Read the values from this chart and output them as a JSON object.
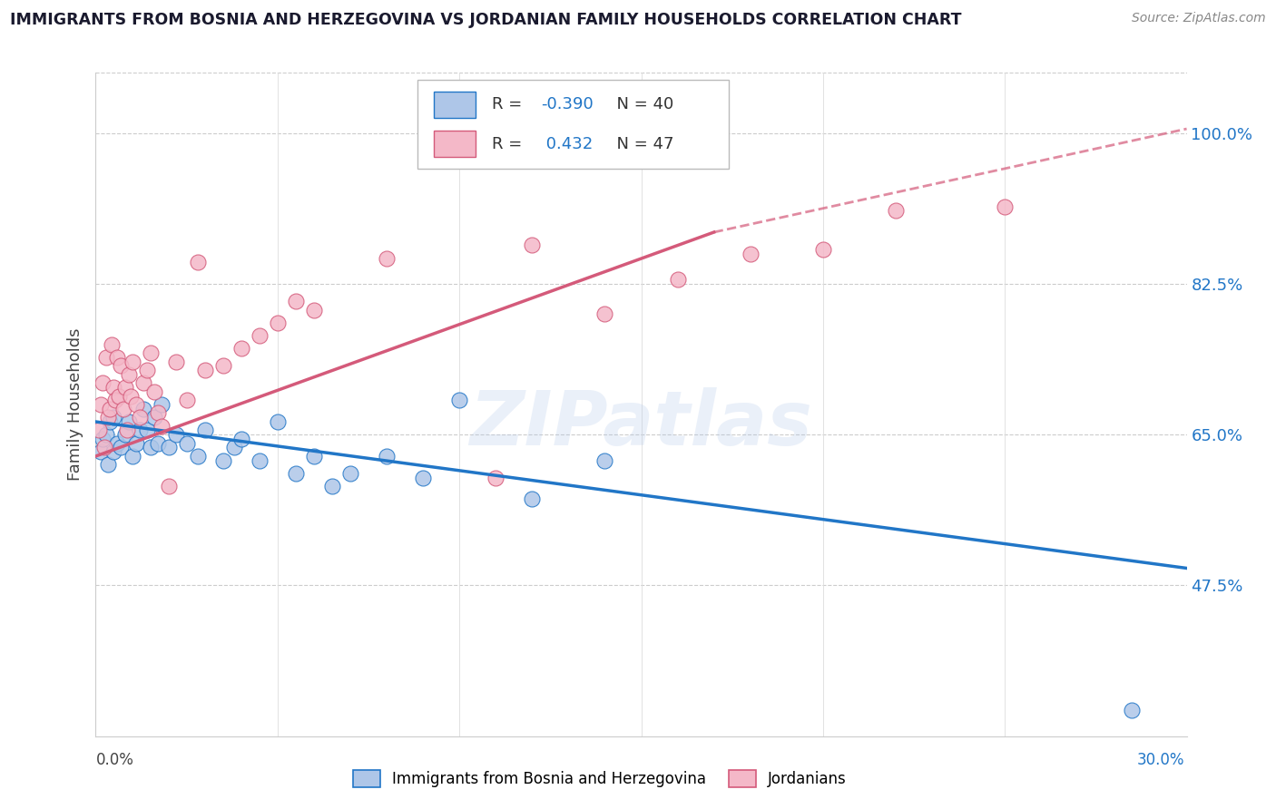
{
  "title": "IMMIGRANTS FROM BOSNIA AND HERZEGOVINA VS JORDANIAN FAMILY HOUSEHOLDS CORRELATION CHART",
  "source": "Source: ZipAtlas.com",
  "ylabel": "Family Households",
  "yticks_vals": [
    47.5,
    65.0,
    82.5,
    100.0
  ],
  "yticks_labels": [
    "47.5%",
    "65.0%",
    "82.5%",
    "100.0%"
  ],
  "xlim": [
    0.0,
    30.0
  ],
  "ylim": [
    30.0,
    107.0
  ],
  "blue_color": "#aec6e8",
  "blue_line_color": "#2176c7",
  "pink_color": "#f4b8c8",
  "pink_line_color": "#d45a7a",
  "R_blue": -0.39,
  "N_blue": 40,
  "R_pink": 0.432,
  "N_pink": 47,
  "watermark": "ZIPatlas",
  "blue_scatter": [
    [
      0.15,
      63.0
    ],
    [
      0.2,
      64.5
    ],
    [
      0.3,
      65.0
    ],
    [
      0.35,
      61.5
    ],
    [
      0.4,
      66.5
    ],
    [
      0.5,
      63.0
    ],
    [
      0.5,
      67.0
    ],
    [
      0.6,
      64.0
    ],
    [
      0.7,
      63.5
    ],
    [
      0.8,
      65.0
    ],
    [
      0.9,
      66.5
    ],
    [
      1.0,
      62.5
    ],
    [
      1.1,
      64.0
    ],
    [
      1.2,
      65.5
    ],
    [
      1.3,
      68.0
    ],
    [
      1.4,
      65.5
    ],
    [
      1.5,
      63.5
    ],
    [
      1.6,
      67.0
    ],
    [
      1.7,
      64.0
    ],
    [
      1.8,
      68.5
    ],
    [
      2.0,
      63.5
    ],
    [
      2.2,
      65.0
    ],
    [
      2.5,
      64.0
    ],
    [
      2.8,
      62.5
    ],
    [
      3.0,
      65.5
    ],
    [
      3.5,
      62.0
    ],
    [
      3.8,
      63.5
    ],
    [
      4.0,
      64.5
    ],
    [
      4.5,
      62.0
    ],
    [
      5.0,
      66.5
    ],
    [
      5.5,
      60.5
    ],
    [
      6.0,
      62.5
    ],
    [
      6.5,
      59.0
    ],
    [
      7.0,
      60.5
    ],
    [
      8.0,
      62.5
    ],
    [
      9.0,
      60.0
    ],
    [
      10.0,
      69.0
    ],
    [
      12.0,
      57.5
    ],
    [
      14.0,
      62.0
    ],
    [
      28.5,
      33.0
    ]
  ],
  "pink_scatter": [
    [
      0.1,
      65.5
    ],
    [
      0.15,
      68.5
    ],
    [
      0.2,
      71.0
    ],
    [
      0.25,
      63.5
    ],
    [
      0.3,
      74.0
    ],
    [
      0.35,
      67.0
    ],
    [
      0.4,
      68.0
    ],
    [
      0.45,
      75.5
    ],
    [
      0.5,
      70.5
    ],
    [
      0.55,
      69.0
    ],
    [
      0.6,
      74.0
    ],
    [
      0.65,
      69.5
    ],
    [
      0.7,
      73.0
    ],
    [
      0.75,
      68.0
    ],
    [
      0.8,
      70.5
    ],
    [
      0.85,
      65.5
    ],
    [
      0.9,
      72.0
    ],
    [
      0.95,
      69.5
    ],
    [
      1.0,
      73.5
    ],
    [
      1.1,
      68.5
    ],
    [
      1.2,
      67.0
    ],
    [
      1.3,
      71.0
    ],
    [
      1.4,
      72.5
    ],
    [
      1.5,
      74.5
    ],
    [
      1.6,
      70.0
    ],
    [
      1.7,
      67.5
    ],
    [
      1.8,
      66.0
    ],
    [
      2.0,
      59.0
    ],
    [
      2.2,
      73.5
    ],
    [
      2.5,
      69.0
    ],
    [
      2.8,
      85.0
    ],
    [
      3.0,
      72.5
    ],
    [
      3.5,
      73.0
    ],
    [
      4.0,
      75.0
    ],
    [
      4.5,
      76.5
    ],
    [
      5.0,
      78.0
    ],
    [
      5.5,
      80.5
    ],
    [
      6.0,
      79.5
    ],
    [
      8.0,
      85.5
    ],
    [
      11.0,
      60.0
    ],
    [
      12.0,
      87.0
    ],
    [
      14.0,
      79.0
    ],
    [
      16.0,
      83.0
    ],
    [
      18.0,
      86.0
    ],
    [
      20.0,
      86.5
    ],
    [
      22.0,
      91.0
    ],
    [
      25.0,
      91.5
    ]
  ],
  "blue_line_pts": [
    [
      0.0,
      66.5
    ],
    [
      30.0,
      49.5
    ]
  ],
  "pink_line_solid": [
    [
      0.0,
      62.5
    ],
    [
      17.0,
      88.5
    ]
  ],
  "pink_line_dash": [
    [
      17.0,
      88.5
    ],
    [
      30.0,
      100.5
    ]
  ]
}
